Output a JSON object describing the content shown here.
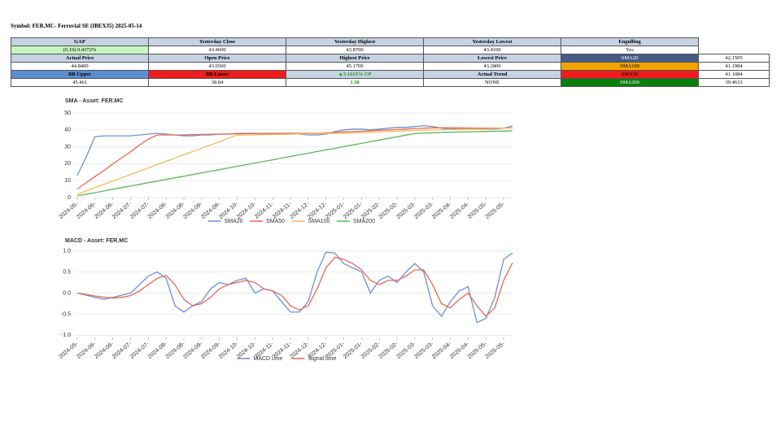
{
  "header": {
    "title": "Symbol: FER.MC- Ferrovial SE (IBEX35) 2025-05-14"
  },
  "table": {
    "rows": [
      [
        "GAP",
        "Yesterday Close",
        "Yesterday Highest",
        "Yesterday Lowest",
        "Engulfing"
      ],
      [
        "(0.19) 0.4372%",
        "43.4600",
        "43.8700",
        "43.4100",
        "Yes"
      ],
      [
        "Actual Price",
        "Open Price",
        "Highest Price",
        "Lowest Price",
        "SMA20",
        "42.1505"
      ],
      [
        "44.8400",
        "43.6500",
        "45.1700",
        "43.2800",
        "SMA100",
        "41.1984"
      ],
      [
        "BB Upper",
        "BB Lower",
        "▲3.1615% UP",
        "Actual Trend",
        "SMA50",
        "41.1084"
      ],
      [
        "45.461",
        "38.84",
        "1.38",
        "NONE",
        "SMA200",
        "39.4633"
      ]
    ]
  },
  "chart_data": [
    {
      "type": "line",
      "title": "SMA - Asset: FER.MC",
      "legend": "bottom",
      "grid": true,
      "categories": [
        "2024-05-",
        null,
        "2024-06-",
        null,
        "2024-06-",
        null,
        "2024-07-",
        null,
        "2024-07-",
        null,
        "2024-08-",
        null,
        "2024-08-",
        null,
        "2024-09-",
        null,
        "2024-09-",
        null,
        "2024-10-",
        null,
        "2024-10-",
        null,
        "2024-11-",
        null,
        "2024-11-",
        null,
        "2024-12-",
        null,
        "2024-12-",
        null,
        "2025-01-",
        null,
        "2025-01-",
        null,
        "2025-02-",
        null,
        "2025-02-",
        null,
        "2025-03-",
        null,
        "2025-03-",
        null,
        "2025-04-",
        null,
        "2025-04-",
        null,
        "2025-05-",
        null,
        "2025-05-",
        null
      ],
      "ylim": [
        0,
        50
      ],
      "yticks": [
        0,
        10,
        20,
        30,
        40,
        50
      ],
      "series": [
        {
          "name": "SMA20",
          "color": "#6f8fd8",
          "values": [
            13,
            24,
            36,
            36.5,
            36.5,
            36.5,
            36.5,
            37,
            37.5,
            38,
            37.5,
            37,
            36.5,
            36.5,
            37,
            37,
            37.5,
            37.5,
            38,
            38,
            38,
            37.5,
            37.5,
            38,
            38,
            37.5,
            37,
            37,
            37.5,
            39,
            40,
            40.5,
            40.5,
            40,
            40.5,
            41,
            41.5,
            41.5,
            42,
            42.5,
            42,
            41,
            40.5,
            41,
            41,
            40.5,
            40.5,
            40.5,
            41,
            42.3
          ]
        },
        {
          "name": "SMA50",
          "color": "#e8694f",
          "values": [
            5,
            8.7,
            12.4,
            16,
            19.8,
            23.5,
            27,
            31,
            34.5,
            37,
            37,
            37,
            37,
            37.2,
            37.3,
            37.4,
            37.5,
            37.6,
            37.7,
            37.8,
            37.8,
            37.9,
            38,
            38,
            38,
            38,
            38,
            38,
            38.2,
            38.5,
            38.8,
            39,
            39.2,
            39.5,
            39.8,
            40,
            40.2,
            40.5,
            40.8,
            41,
            41.2,
            41.3,
            41.3,
            41.2,
            41.1,
            41,
            41,
            41,
            41.1,
            41.2
          ]
        },
        {
          "name": "SMA100",
          "color": "#f6b95a",
          "values": [
            2,
            3.9,
            5.9,
            7.8,
            9.8,
            11.7,
            13.6,
            15.6,
            17.5,
            19.5,
            21.4,
            23.3,
            25.3,
            27.2,
            29.2,
            31.1,
            33,
            35,
            36.9,
            37,
            37.1,
            37.2,
            37.3,
            37.4,
            37.5,
            37.6,
            37.7,
            37.8,
            37.9,
            38,
            38.1,
            38.2,
            38.4,
            38.6,
            38.8,
            39,
            39.2,
            39.4,
            39.6,
            39.8,
            40,
            40.1,
            40.2,
            40.3,
            40.4,
            40.5,
            40.6,
            40.8,
            41,
            41.2
          ]
        },
        {
          "name": "SMA200",
          "color": "#5cb85c",
          "values": [
            1,
            2,
            2.9,
            3.9,
            4.9,
            5.9,
            6.8,
            7.8,
            8.8,
            9.7,
            10.7,
            11.7,
            12.6,
            13.6,
            14.6,
            15.6,
            16.5,
            17.5,
            18.5,
            19.4,
            20.4,
            21.4,
            22.3,
            23.3,
            24.3,
            25.3,
            26.2,
            27.2,
            28.2,
            29.1,
            30.1,
            31.1,
            32,
            33,
            34,
            35,
            35.9,
            36.9,
            37.9,
            38.1,
            38.3,
            38.5,
            38.6,
            38.8,
            38.9,
            39,
            39.1,
            39.2,
            39.3,
            39.46
          ]
        }
      ]
    },
    {
      "type": "line",
      "title": "MACD - Asset: FER.MC",
      "legend": "bottom",
      "grid": true,
      "categories": [
        "2024-05-",
        null,
        "2024-06-",
        null,
        "2024-06-",
        null,
        "2024-07-",
        null,
        "2024-07-",
        null,
        "2024-08-",
        null,
        "2024-08-",
        null,
        "2024-09-",
        null,
        "2024-09-",
        null,
        "2024-10-",
        null,
        "2024-10-",
        null,
        "2024-11-",
        null,
        "2024-11-",
        null,
        "2024-12-",
        null,
        "2024-12-",
        null,
        "2025-01-",
        null,
        "2025-01-",
        null,
        "2025-02-",
        null,
        "2025-02-",
        null,
        "2025-03-",
        null,
        "2025-03-",
        null,
        "2025-04-",
        null,
        "2025-04-",
        null,
        "2025-05-",
        null,
        "2025-05-",
        null
      ],
      "ylim": [
        -1.05,
        1.05
      ],
      "yticks": [
        {
          "value": -1,
          "label": "-1.0"
        },
        {
          "value": -0.5,
          "label": "-0.5"
        },
        {
          "value": 0,
          "label": "0.0"
        },
        {
          "value": 0.5,
          "label": "0.5"
        },
        {
          "value": 1,
          "label": "1.0"
        }
      ],
      "series": [
        {
          "name": "MACD Line",
          "color": "#6f8fd8",
          "values": [
            0,
            -0.05,
            -0.1,
            -0.15,
            -0.1,
            -0.05,
            0,
            0.2,
            0.4,
            0.5,
            0.35,
            -0.3,
            -0.45,
            -0.3,
            -0.2,
            0.1,
            0.25,
            0.2,
            0.3,
            0.35,
            0,
            0.1,
            0.05,
            -0.2,
            -0.45,
            -0.45,
            -0.2,
            0.5,
            0.97,
            0.95,
            0.7,
            0.6,
            0.5,
            0,
            0.3,
            0.4,
            0.25,
            0.5,
            0.7,
            0.5,
            -0.3,
            -0.55,
            -0.2,
            0.05,
            0.15,
            -0.7,
            -0.6,
            -0.1,
            0.8,
            0.95
          ]
        },
        {
          "name": "Signal Line",
          "color": "#e8694f",
          "values": [
            0,
            -0.03,
            -0.07,
            -0.1,
            -0.12,
            -0.1,
            -0.06,
            0.05,
            0.2,
            0.35,
            0.42,
            0.2,
            -0.15,
            -0.3,
            -0.25,
            -0.1,
            0.1,
            0.2,
            0.25,
            0.3,
            0.25,
            0.1,
            0.05,
            -0.05,
            -0.3,
            -0.4,
            -0.3,
            0.1,
            0.6,
            0.85,
            0.8,
            0.7,
            0.55,
            0.3,
            0.2,
            0.3,
            0.3,
            0.4,
            0.55,
            0.55,
            0.2,
            -0.25,
            -0.35,
            -0.15,
            0,
            -0.3,
            -0.55,
            -0.35,
            0.3,
            0.72
          ]
        }
      ]
    }
  ]
}
